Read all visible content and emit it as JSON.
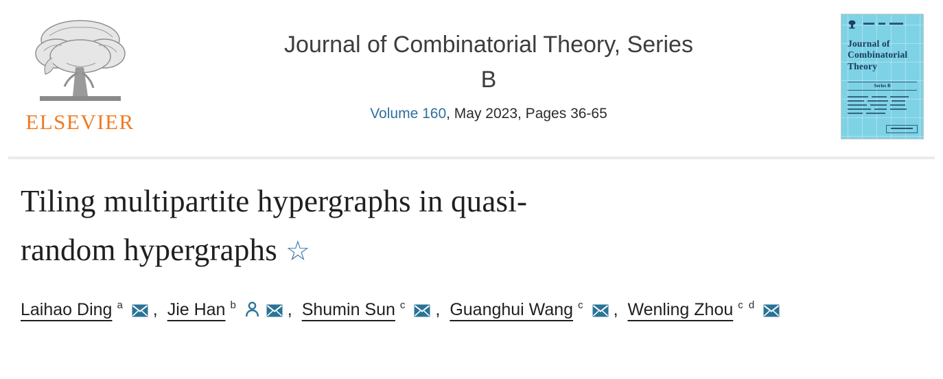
{
  "header": {
    "publisher_wordmark": "ELSEVIER",
    "journal_title_line1": "Journal of Combinatorial Theory, Series",
    "journal_title_line2": "B",
    "volume_link": "Volume 160",
    "issue_suffix": ", May 2023, Pages 36-65",
    "cover": {
      "title_lines": [
        "Journal of",
        "Combinatorial",
        "Theory"
      ],
      "series_label": "Series B"
    }
  },
  "article": {
    "title_line1": "Tiling multipartite hypergraphs in quasi-",
    "title_line2": "random hypergraphs",
    "footnote_star": "☆",
    "separator": ", ",
    "authors": [
      {
        "name": "Laihao Ding",
        "affiliations": "a",
        "icons": [
          "envelope-icon"
        ]
      },
      {
        "name": "Jie Han",
        "affiliations": "b",
        "icons": [
          "person-icon",
          "envelope-icon"
        ]
      },
      {
        "name": "Shumin Sun",
        "affiliations": "c",
        "icons": [
          "envelope-icon"
        ]
      },
      {
        "name": "Guanghui Wang",
        "affiliations": "c",
        "icons": [
          "envelope-icon"
        ]
      },
      {
        "name": "Wenling Zhou",
        "affiliations": "c d",
        "icons": [
          "envelope-icon"
        ]
      }
    ]
  },
  "colors": {
    "link_blue": "#2e6f9e",
    "icon_blue": "#2b7397",
    "star_blue": "#3b74a5",
    "elsevier_orange": "#ef7b23",
    "cover_background": "#7ed2e5",
    "cover_text": "#163a5e",
    "divider_gray": "#ebebeb",
    "title_text": "#1f1f1f"
  }
}
